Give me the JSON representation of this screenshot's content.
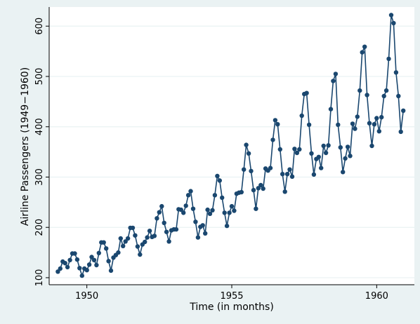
{
  "chart_data": {
    "type": "line",
    "title": "",
    "xlabel": "Time (in months)",
    "ylabel": "Airline Passengers (1949−1960)",
    "xlim": [
      1948.7,
      1961.3
    ],
    "ylim": [
      86,
      638
    ],
    "x_ticks": [
      1950,
      1955,
      1960
    ],
    "y_ticks": [
      100,
      200,
      300,
      400,
      500,
      600
    ],
    "grid": true,
    "markers": true,
    "start": "1949-01",
    "frequency": "monthly",
    "series": [
      {
        "values": [
          112,
          118,
          132,
          129,
          121,
          135,
          148,
          148,
          136,
          119,
          104,
          118,
          115,
          126,
          141,
          135,
          125,
          149,
          170,
          170,
          158,
          133,
          114,
          140,
          145,
          150,
          178,
          163,
          172,
          178,
          199,
          199,
          184,
          162,
          146,
          166,
          171,
          180,
          193,
          181,
          183,
          218,
          230,
          242,
          209,
          191,
          172,
          194,
          196,
          196,
          236,
          235,
          229,
          243,
          264,
          272,
          237,
          211,
          180,
          201,
          204,
          188,
          235,
          227,
          234,
          264,
          302,
          293,
          259,
          229,
          203,
          229,
          242,
          233,
          267,
          269,
          270,
          315,
          364,
          347,
          312,
          274,
          237,
          278,
          284,
          277,
          317,
          313,
          318,
          374,
          413,
          405,
          355,
          306,
          271,
          306,
          315,
          301,
          356,
          348,
          355,
          422,
          465,
          467,
          404,
          347,
          305,
          336,
          340,
          318,
          362,
          348,
          363,
          435,
          491,
          505,
          404,
          359,
          310,
          337,
          360,
          342,
          406,
          396,
          420,
          472,
          548,
          559,
          463,
          407,
          362,
          405,
          417,
          391,
          419,
          461,
          472,
          535,
          622,
          606,
          508,
          461,
          390,
          432
        ]
      }
    ],
    "colors": {
      "figure_background": "#eaf2f3",
      "plot_background": "#ffffff",
      "line": "#1a476f",
      "marker": "#1a476f",
      "grid": "#eaf2f3"
    }
  }
}
